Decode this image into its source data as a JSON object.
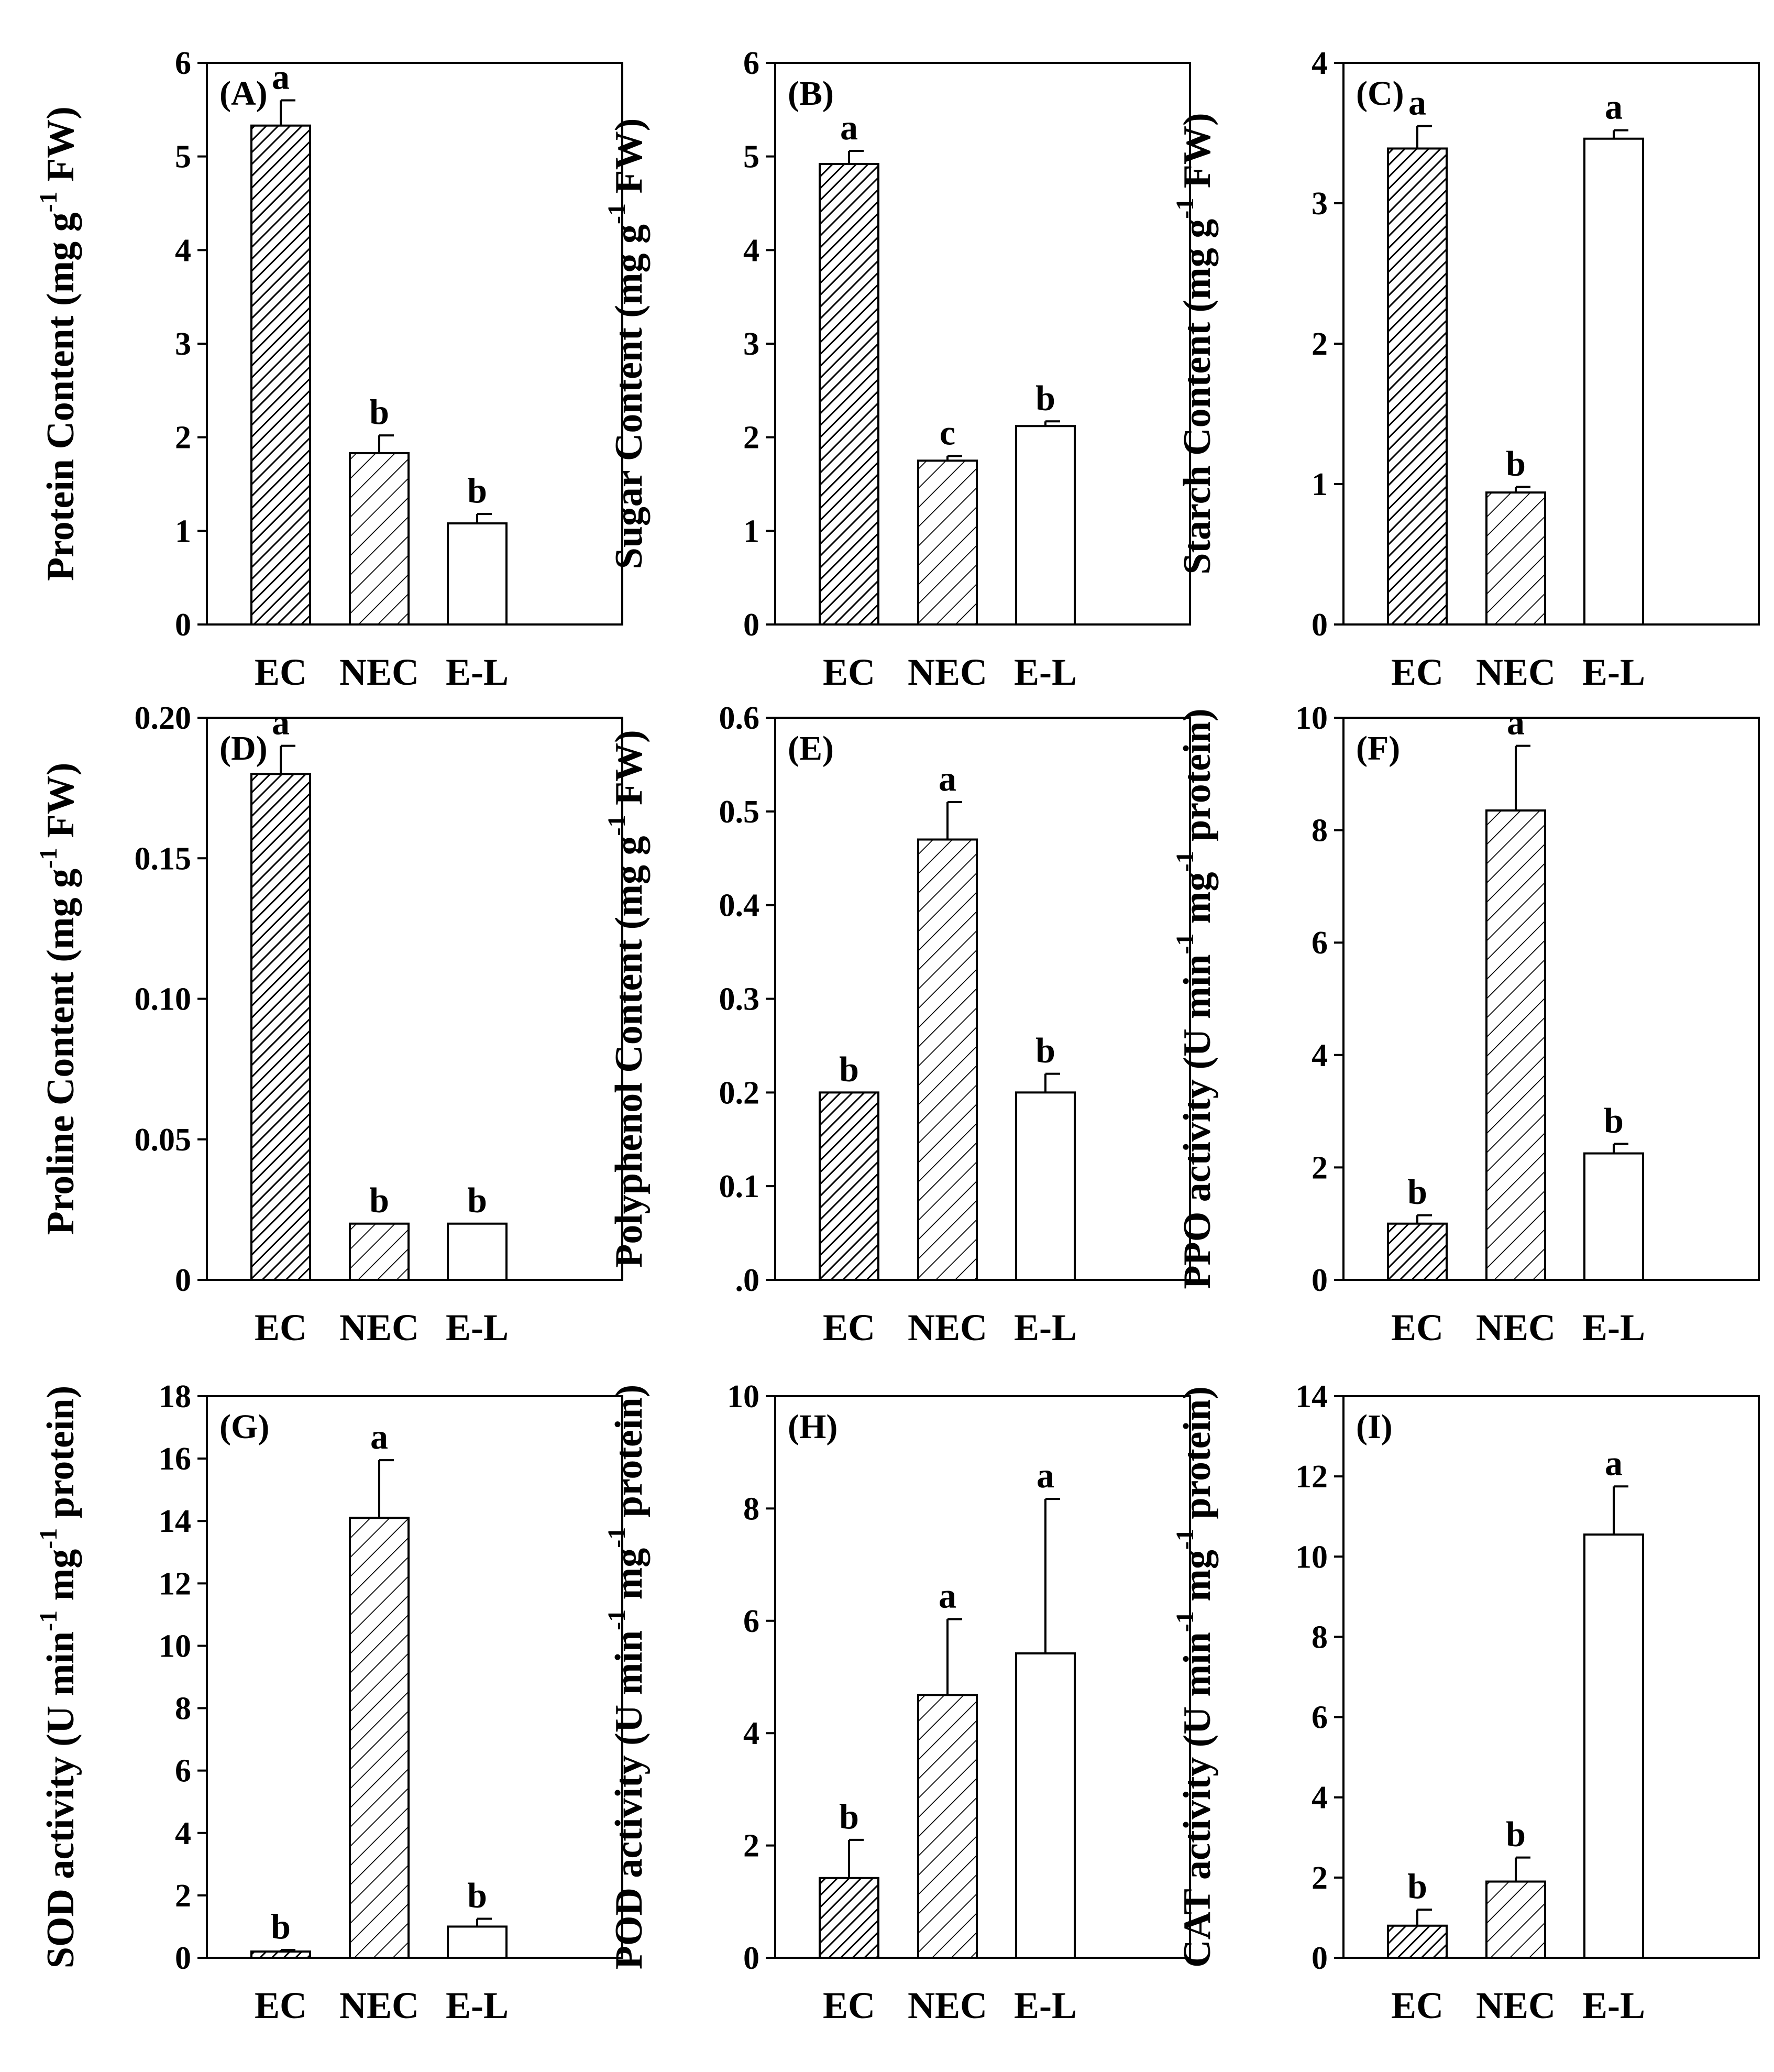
{
  "figure_title": "",
  "chart_data": [
    {
      "type": "bar",
      "panel_label": "(A)",
      "ylabel": "Protein Content (mg g-1 FW)",
      "ylabel_parts": [
        "Protein Content (mg g",
        "-1",
        " FW)"
      ],
      "categories": [
        "EC",
        "NEC",
        "E-L"
      ],
      "values": [
        5.33,
        1.83,
        1.08
      ],
      "errors": [
        0.27,
        0.19,
        0.1
      ],
      "significance": [
        "a",
        "b",
        "b"
      ],
      "ylim": [
        0,
        6
      ],
      "yticks": [
        "0",
        "1",
        "2",
        "3",
        "4",
        "5",
        "6"
      ],
      "patterns": [
        "dense-hatch",
        "sparse-hatch",
        "none"
      ]
    },
    {
      "type": "bar",
      "panel_label": "(B)",
      "ylabel": "Sugar Content (mg g-1 FW)",
      "ylabel_parts": [
        "Sugar Content (mg g",
        "-1",
        " FW)"
      ],
      "categories": [
        "EC",
        "NEC",
        "E-L"
      ],
      "values": [
        4.92,
        1.75,
        2.12
      ],
      "errors": [
        0.14,
        0.05,
        0.05
      ],
      "significance": [
        "a",
        "c",
        "b"
      ],
      "ylim": [
        0,
        6
      ],
      "yticks": [
        "0",
        "1",
        "2",
        "3",
        "4",
        "5",
        "6"
      ],
      "patterns": [
        "dense-hatch",
        "sparse-hatch",
        "none"
      ]
    },
    {
      "type": "bar",
      "panel_label": "(C)",
      "ylabel": "Starch Content (mg g-1 FW)",
      "ylabel_parts": [
        "Starch Content (mg g",
        "-1",
        " FW)"
      ],
      "categories": [
        "EC",
        "NEC",
        "E-L"
      ],
      "values": [
        3.39,
        0.94,
        3.46
      ],
      "errors": [
        0.16,
        0.04,
        0.06
      ],
      "significance": [
        "a",
        "b",
        "a"
      ],
      "ylim": [
        0,
        4
      ],
      "yticks": [
        "0",
        "1",
        "2",
        "3",
        "4"
      ],
      "patterns": [
        "dense-hatch",
        "sparse-hatch",
        "none"
      ]
    },
    {
      "type": "bar",
      "panel_label": "(D)",
      "ylabel": "Proline Content (mg g-1 FW)",
      "ylabel_parts": [
        "Proline Content (mg g",
        "-1",
        " FW)"
      ],
      "categories": [
        "EC",
        "NEC",
        "E-L"
      ],
      "values": [
        0.18,
        0.02,
        0.02
      ],
      "errors": [
        0.01,
        0,
        0
      ],
      "significance": [
        "a",
        "b",
        "b"
      ],
      "ylim": [
        0,
        0.2
      ],
      "yticks": [
        "0",
        "0.05",
        "0.10",
        "0.15",
        "0.20"
      ],
      "patterns": [
        "dense-hatch",
        "sparse-hatch",
        "none"
      ]
    },
    {
      "type": "bar",
      "panel_label": "(E)",
      "ylabel": "Polyphenol Content (mg g-1 FW)",
      "ylabel_parts": [
        "Polyphenol Content (mg g",
        "-1",
        " FW)"
      ],
      "categories": [
        "EC",
        "NEC",
        "E-L"
      ],
      "values": [
        0.2,
        0.47,
        0.2
      ],
      "errors": [
        0,
        0.04,
        0.02
      ],
      "significance": [
        "b",
        "a",
        "b"
      ],
      "ylim": [
        0,
        0.6
      ],
      "yticks": [
        ".0",
        "0.1",
        "0.2",
        "0.3",
        "0.4",
        "0.5",
        "0.6"
      ],
      "patterns": [
        "dense-hatch",
        "sparse-hatch",
        "none"
      ]
    },
    {
      "type": "bar",
      "panel_label": "(F)",
      "ylabel": "PPO activity (U min-1 mg-1 protein)",
      "ylabel_parts": [
        "PPO activity (U min",
        "-1",
        " mg",
        "-1",
        " protein)"
      ],
      "categories": [
        "EC",
        "NEC",
        "E-L"
      ],
      "values": [
        1.0,
        8.35,
        2.25
      ],
      "errors": [
        0.15,
        1.15,
        0.17
      ],
      "significance": [
        "b",
        "a",
        "b"
      ],
      "ylim": [
        0,
        10
      ],
      "yticks": [
        "0",
        "2",
        "4",
        "6",
        "8",
        "10"
      ],
      "patterns": [
        "dense-hatch",
        "sparse-hatch",
        "none"
      ]
    },
    {
      "type": "bar",
      "panel_label": "(G)",
      "ylabel": "SOD activity (U min-1 mg-1 protein)",
      "ylabel_parts": [
        "SOD activity (U min",
        "-1",
        " mg",
        "-1",
        " protein)"
      ],
      "categories": [
        "EC",
        "NEC",
        "E-L"
      ],
      "values": [
        0.2,
        14.1,
        1.0
      ],
      "errors": [
        0.05,
        1.85,
        0.25
      ],
      "significance": [
        "b",
        "a",
        "b"
      ],
      "ylim": [
        0,
        18
      ],
      "yticks": [
        "0",
        "2",
        "4",
        "6",
        "8",
        "10",
        "12",
        "14",
        "16",
        "18"
      ],
      "patterns": [
        "dense-hatch",
        "sparse-hatch",
        "none"
      ]
    },
    {
      "type": "bar",
      "panel_label": "(H)",
      "ylabel": "POD activity (U min-1 mg-1 protein)",
      "ylabel_parts": [
        "POD activity (U min",
        "-1",
        " mg",
        "-1",
        " protein)"
      ],
      "categories": [
        "EC",
        "NEC",
        "E-L"
      ],
      "values": [
        1.42,
        4.68,
        5.42
      ],
      "errors": [
        0.68,
        1.35,
        2.75
      ],
      "significance": [
        "b",
        "a",
        "a"
      ],
      "ylim": [
        0,
        10
      ],
      "yticks": [
        "0",
        "2",
        "4",
        "6",
        "8",
        "10"
      ],
      "patterns": [
        "dense-hatch",
        "sparse-hatch",
        "none"
      ]
    },
    {
      "type": "bar",
      "panel_label": "(I)",
      "ylabel": "CAT activity (U min-1 mg-1 protein)",
      "ylabel_parts": [
        "CAT activity (U min",
        "-1",
        " mg",
        "-1",
        " protein)"
      ],
      "categories": [
        "EC",
        "NEC",
        "E-L"
      ],
      "values": [
        0.8,
        1.9,
        10.55
      ],
      "errors": [
        0.4,
        0.6,
        1.2
      ],
      "significance": [
        "b",
        "b",
        "a"
      ],
      "ylim": [
        0,
        14
      ],
      "yticks": [
        "0",
        "2",
        "4",
        "6",
        "8",
        "10",
        "12",
        "14"
      ],
      "patterns": [
        "dense-hatch",
        "sparse-hatch",
        "none"
      ]
    }
  ]
}
